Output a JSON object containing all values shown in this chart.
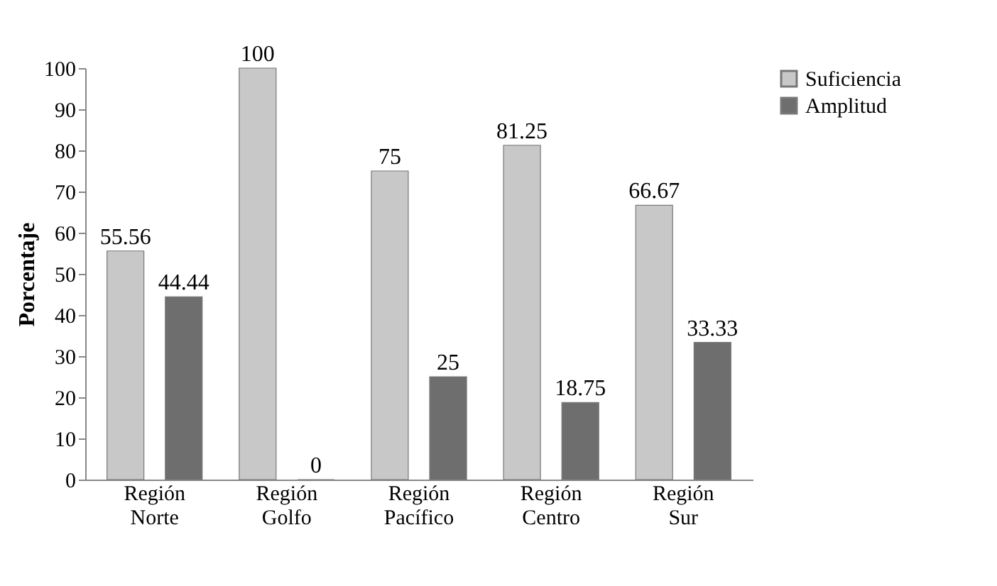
{
  "chart_data": {
    "type": "bar",
    "ylabel": "Porcentaje",
    "categories": [
      "Región Norte",
      "Región Golfo",
      "Región Pacífico",
      "Región Centro",
      "Región Sur"
    ],
    "series": [
      {
        "name": "Suficiencia",
        "color": "#c8c8c8",
        "values": [
          55.56,
          100,
          75,
          81.25,
          66.67
        ]
      },
      {
        "name": "Amplitud",
        "color": "#6e6e6e",
        "values": [
          44.44,
          0,
          25,
          18.75,
          33.33
        ]
      }
    ],
    "ylim": [
      0,
      100
    ],
    "yticks": [
      0,
      10,
      20,
      30,
      40,
      50,
      60,
      70,
      80,
      90,
      100
    ],
    "data_labels": true,
    "legend": "right",
    "grid": false
  }
}
